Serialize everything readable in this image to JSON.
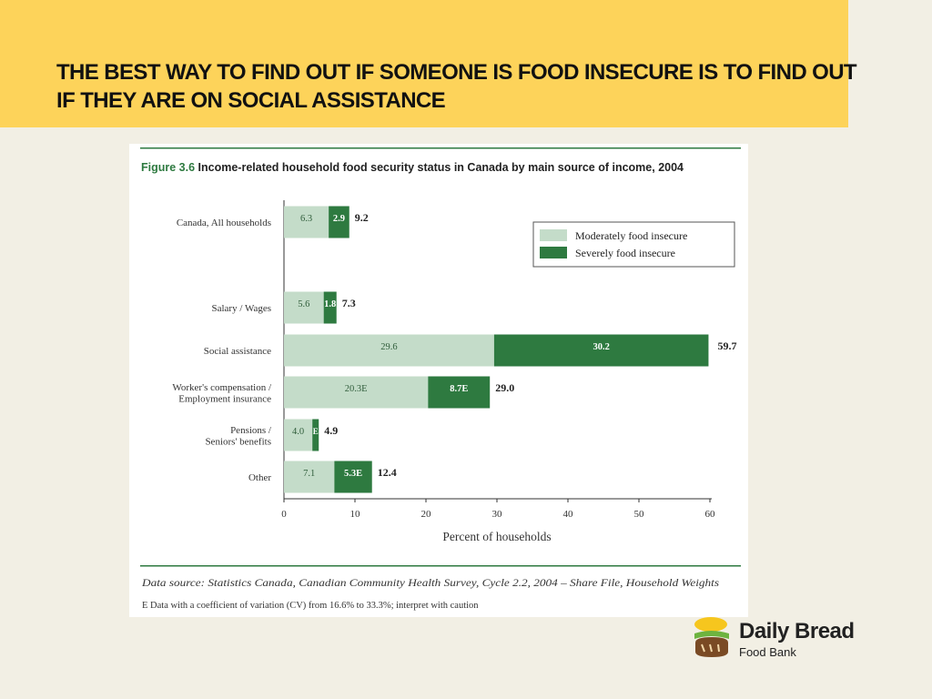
{
  "slide": {
    "title": "THE BEST WAY TO FIND OUT IF SOMEONE IS FOOD INSECURE IS TO FIND OUT IF THEY ARE ON SOCIAL ASSISTANCE"
  },
  "logo": {
    "name": "Daily Bread",
    "subtitle": "Food Bank"
  },
  "colors": {
    "banner": "#fdd35a",
    "moderate": "#c4dcc9",
    "severe": "#2e7a40",
    "rule": "#2e7a40",
    "figure_label": "#2e7a40"
  },
  "chart_data": {
    "type": "bar",
    "orientation": "horizontal",
    "stacked": true,
    "figure_label": "Figure 3.6",
    "title": "Income-related household food security status in Canada by main source of income, 2004",
    "xlabel": "Percent of households",
    "xlim": [
      0,
      60
    ],
    "xticks": [
      0,
      10,
      20,
      30,
      40,
      50,
      60
    ],
    "legend_position": "top-right",
    "categories": [
      [
        "Canada, All households"
      ],
      [
        "Salary / Wages"
      ],
      [
        "Social assistance"
      ],
      [
        "Worker's compensation /",
        "Employment insurance"
      ],
      [
        "Pensions /",
        "Seniors' benefits"
      ],
      [
        "Other"
      ]
    ],
    "series": [
      {
        "name": "Moderately food insecure",
        "values": [
          6.3,
          5.6,
          29.6,
          20.3,
          4.0,
          7.1
        ],
        "labels": [
          "6.3",
          "5.6",
          "29.6",
          "20.3E",
          "4.0",
          "7.1"
        ]
      },
      {
        "name": "Severely food insecure",
        "values": [
          2.9,
          1.8,
          30.2,
          8.7,
          0.9,
          5.3
        ],
        "labels": [
          "2.9",
          "1.8",
          "30.2",
          "8.7E",
          "E",
          "5.3E"
        ]
      }
    ],
    "totals": [
      "9.2",
      "7.3",
      "59.7",
      "29.0",
      "4.9",
      "12.4"
    ],
    "source": "Data source: Statistics Canada, Canadian Community Health Survey, Cycle 2.2, 2004 – Share File, Household Weights",
    "footnote": "E  Data with a coefficient of variation (CV) from 16.6% to 33.3%; interpret with caution"
  }
}
